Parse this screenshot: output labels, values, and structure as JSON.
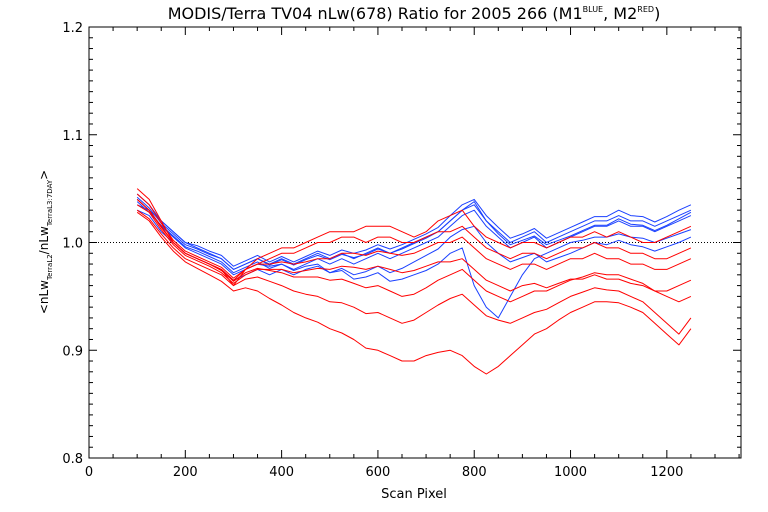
{
  "title_parts": {
    "main": "MODIS/Terra TV04 nLw(678) Ratio for 2005 266 (M1",
    "sup1": "BLUE",
    "mid": ", M2",
    "sup2": "RED",
    "end": ")"
  },
  "ylabel_parts": {
    "open": "<nLw",
    "sub1": "TerraL2",
    "slash": "/nLw",
    "sub2": "TerraL3:7DAY",
    "close": ">"
  },
  "xlabel": "Scan Pixel",
  "colors": {
    "blue": "#1a40ff",
    "red": "#ff0000",
    "axis": "#000000"
  },
  "chart_data": {
    "type": "line",
    "xlabel": "Scan Pixel",
    "ylabel": "<nLw TerraL2/nLw TerraL3:7DAY>",
    "xlim": [
      0,
      1354
    ],
    "ylim": [
      0.8,
      1.2
    ],
    "x_ticks": [
      0,
      200,
      400,
      600,
      800,
      1000,
      1200
    ],
    "x_tick_labels": [
      "0",
      "200",
      "400",
      "600",
      "800",
      "1000",
      "1200"
    ],
    "y_ticks": [
      0.8,
      0.9,
      1.0,
      1.1,
      1.2
    ],
    "y_tick_labels": [
      "0.8",
      "0.9",
      "1.0",
      "1.1",
      "1.2"
    ],
    "reference_line": {
      "y": 1.0,
      "style": "dotted"
    },
    "x": [
      100,
      125,
      150,
      175,
      200,
      225,
      250,
      275,
      300,
      325,
      350,
      375,
      400,
      425,
      450,
      475,
      500,
      525,
      550,
      575,
      600,
      625,
      650,
      675,
      700,
      725,
      750,
      775,
      800,
      825,
      850,
      875,
      900,
      925,
      950,
      975,
      1000,
      1025,
      1050,
      1075,
      1100,
      1125,
      1150,
      1175,
      1200,
      1225,
      1250
    ],
    "series": [
      {
        "color": "blue",
        "values": [
          1.04,
          1.03,
          1.02,
          1.01,
          1.0,
          0.995,
          0.99,
          0.985,
          0.975,
          0.98,
          0.985,
          0.98,
          0.985,
          0.98,
          0.985,
          0.99,
          0.985,
          0.99,
          0.985,
          0.99,
          0.995,
          0.99,
          0.995,
          1.0,
          1.005,
          1.01,
          1.02,
          1.03,
          1.035,
          1.02,
          1.01,
          1.0,
          1.005,
          1.01,
          1.0,
          1.005,
          1.01,
          1.015,
          1.02,
          1.02,
          1.025,
          1.02,
          1.02,
          1.015,
          1.02,
          1.025,
          1.03
        ]
      },
      {
        "color": "blue",
        "values": [
          1.035,
          1.03,
          1.015,
          1.005,
          0.995,
          0.99,
          0.985,
          0.98,
          0.97,
          0.975,
          0.98,
          0.978,
          0.98,
          0.975,
          0.98,
          0.985,
          0.98,
          0.985,
          0.98,
          0.985,
          0.99,
          0.985,
          0.99,
          0.995,
          1.0,
          1.005,
          1.015,
          1.025,
          1.03,
          1.015,
          1.005,
          0.995,
          1.0,
          1.005,
          0.995,
          1.0,
          1.005,
          1.01,
          1.015,
          1.015,
          1.02,
          1.015,
          1.015,
          1.01,
          1.015,
          1.02,
          1.025
        ]
      },
      {
        "color": "blue",
        "values": [
          1.045,
          1.035,
          1.02,
          1.01,
          1.0,
          0.997,
          0.992,
          0.988,
          0.978,
          0.983,
          0.988,
          0.982,
          0.987,
          0.982,
          0.987,
          0.992,
          0.988,
          0.993,
          0.99,
          0.993,
          0.998,
          0.994,
          0.998,
          1.003,
          1.008,
          1.014,
          1.025,
          1.035,
          1.04,
          1.025,
          1.014,
          1.004,
          1.008,
          1.013,
          1.004,
          1.009,
          1.014,
          1.019,
          1.024,
          1.024,
          1.03,
          1.025,
          1.024,
          1.019,
          1.024,
          1.03,
          1.035
        ]
      },
      {
        "color": "blue",
        "values": [
          1.03,
          1.025,
          1.01,
          1.0,
          0.99,
          0.985,
          0.98,
          0.975,
          0.965,
          0.97,
          0.975,
          0.97,
          0.975,
          0.97,
          0.975,
          0.978,
          0.972,
          0.976,
          0.97,
          0.973,
          0.978,
          0.972,
          0.976,
          0.982,
          0.988,
          0.994,
          1.005,
          1.012,
          1.015,
          1.0,
          0.99,
          0.982,
          0.986,
          0.99,
          0.982,
          0.986,
          0.99,
          0.995,
          1.0,
          0.998,
          1.002,
          0.998,
          0.996,
          0.992,
          0.996,
          1.0,
          1.005
        ]
      },
      {
        "color": "blue",
        "values": [
          1.038,
          1.028,
          1.016,
          1.006,
          0.996,
          0.992,
          0.987,
          0.982,
          0.972,
          0.977,
          0.982,
          0.976,
          0.98,
          0.974,
          0.978,
          0.98,
          0.972,
          0.974,
          0.966,
          0.968,
          0.972,
          0.964,
          0.966,
          0.97,
          0.974,
          0.98,
          0.99,
          0.995,
          0.96,
          0.94,
          0.93,
          0.95,
          0.97,
          0.985,
          0.99,
          0.995,
          1.0,
          1.002,
          1.005,
          1.005,
          1.008,
          1.005,
          1.004,
          1.0,
          1.004,
          1.008,
          1.012
        ]
      },
      {
        "color": "blue",
        "values": [
          1.042,
          1.032,
          1.018,
          1.008,
          0.998,
          0.994,
          0.989,
          0.985,
          0.975,
          0.98,
          0.985,
          0.979,
          0.984,
          0.979,
          0.984,
          0.988,
          0.984,
          0.989,
          0.986,
          0.989,
          0.994,
          0.99,
          0.994,
          0.999,
          1.004,
          1.01,
          1.02,
          1.03,
          1.038,
          1.02,
          1.008,
          0.998,
          1.002,
          1.006,
          0.998,
          1.002,
          1.006,
          1.011,
          1.016,
          1.016,
          1.022,
          1.017,
          1.016,
          1.011,
          1.016,
          1.022,
          1.028
        ]
      },
      {
        "color": "red",
        "values": [
          1.05,
          1.04,
          1.02,
          1.0,
          0.99,
          0.985,
          0.98,
          0.975,
          0.96,
          0.975,
          0.985,
          0.99,
          0.995,
          0.995,
          1.0,
          1.005,
          1.01,
          1.01,
          1.01,
          1.015,
          1.015,
          1.015,
          1.01,
          1.005,
          1.01,
          1.02,
          1.025,
          1.03,
          1.015,
          1.005,
          1.0,
          0.995,
          1.0,
          1.0,
          0.995,
          1.0,
          1.005,
          1.005,
          1.01,
          1.005,
          1.01,
          1.005,
          1.0,
          1.0,
          1.005,
          1.01,
          1.015
        ]
      },
      {
        "color": "red",
        "values": [
          1.04,
          1.03,
          1.015,
          1.0,
          0.99,
          0.985,
          0.98,
          0.975,
          0.965,
          0.975,
          0.98,
          0.985,
          0.99,
          0.99,
          0.995,
          1.0,
          1.0,
          1.005,
          1.005,
          1.0,
          1.005,
          1.005,
          1.0,
          1.0,
          1.005,
          1.01,
          1.01,
          1.015,
          1.005,
          0.995,
          0.99,
          0.985,
          0.99,
          0.99,
          0.985,
          0.99,
          0.995,
          0.995,
          1.0,
          0.995,
          0.995,
          0.99,
          0.99,
          0.985,
          0.985,
          0.99,
          0.995
        ]
      },
      {
        "color": "red",
        "values": [
          1.045,
          1.035,
          1.018,
          1.002,
          0.992,
          0.987,
          0.982,
          0.977,
          0.967,
          0.975,
          0.98,
          0.98,
          0.982,
          0.98,
          0.982,
          0.985,
          0.985,
          0.99,
          0.99,
          0.988,
          0.992,
          0.99,
          0.988,
          0.99,
          0.995,
          1.0,
          1.0,
          1.005,
          0.995,
          0.985,
          0.98,
          0.975,
          0.98,
          0.98,
          0.975,
          0.98,
          0.985,
          0.985,
          0.99,
          0.985,
          0.985,
          0.98,
          0.98,
          0.975,
          0.975,
          0.98,
          0.985
        ]
      },
      {
        "color": "red",
        "values": [
          1.035,
          1.028,
          1.012,
          0.998,
          0.988,
          0.983,
          0.978,
          0.972,
          0.962,
          0.97,
          0.975,
          0.975,
          0.975,
          0.972,
          0.974,
          0.976,
          0.975,
          0.978,
          0.977,
          0.975,
          0.978,
          0.975,
          0.972,
          0.974,
          0.978,
          0.982,
          0.982,
          0.985,
          0.975,
          0.965,
          0.96,
          0.955,
          0.96,
          0.962,
          0.958,
          0.962,
          0.966,
          0.966,
          0.97,
          0.966,
          0.966,
          0.962,
          0.96,
          0.955,
          0.955,
          0.96,
          0.965
        ]
      },
      {
        "color": "red",
        "values": [
          1.04,
          1.03,
          1.014,
          1.0,
          0.99,
          0.985,
          0.98,
          0.974,
          0.964,
          0.972,
          0.976,
          0.974,
          0.972,
          0.968,
          0.968,
          0.968,
          0.965,
          0.966,
          0.962,
          0.958,
          0.96,
          0.955,
          0.95,
          0.952,
          0.958,
          0.965,
          0.97,
          0.975,
          0.965,
          0.955,
          0.95,
          0.945,
          0.95,
          0.955,
          0.955,
          0.96,
          0.965,
          0.968,
          0.972,
          0.97,
          0.97,
          0.966,
          0.962,
          0.955,
          0.95,
          0.945,
          0.95
        ]
      },
      {
        "color": "red",
        "values": [
          1.03,
          1.022,
          1.008,
          0.995,
          0.985,
          0.98,
          0.975,
          0.97,
          0.96,
          0.966,
          0.968,
          0.964,
          0.96,
          0.955,
          0.952,
          0.95,
          0.945,
          0.944,
          0.94,
          0.934,
          0.935,
          0.93,
          0.925,
          0.928,
          0.935,
          0.942,
          0.948,
          0.952,
          0.942,
          0.932,
          0.928,
          0.925,
          0.93,
          0.935,
          0.938,
          0.944,
          0.95,
          0.954,
          0.958,
          0.956,
          0.955,
          0.95,
          0.945,
          0.935,
          0.925,
          0.915,
          0.93
        ]
      },
      {
        "color": "red",
        "values": [
          1.028,
          1.02,
          1.005,
          0.992,
          0.982,
          0.976,
          0.97,
          0.964,
          0.955,
          0.958,
          0.955,
          0.948,
          0.942,
          0.935,
          0.93,
          0.926,
          0.92,
          0.916,
          0.91,
          0.902,
          0.9,
          0.895,
          0.89,
          0.89,
          0.895,
          0.898,
          0.9,
          0.895,
          0.885,
          0.878,
          0.885,
          0.895,
          0.905,
          0.915,
          0.92,
          0.928,
          0.935,
          0.94,
          0.945,
          0.945,
          0.944,
          0.94,
          0.935,
          0.925,
          0.915,
          0.905,
          0.92
        ]
      }
    ]
  }
}
